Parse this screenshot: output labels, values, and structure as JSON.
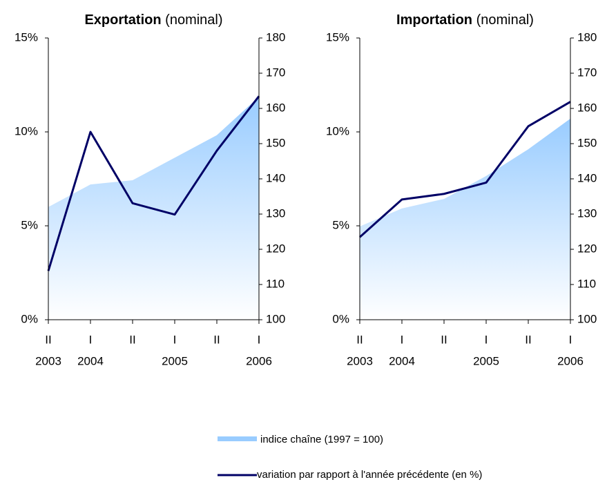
{
  "chart_data": [
    {
      "type": "area_line",
      "title": "Exportation",
      "title_note": "(nominal)",
      "categories": [
        "II",
        "I",
        "II",
        "I",
        "II",
        "I"
      ],
      "category_years": [
        "2003",
        "2004",
        null,
        "2005",
        null,
        "2006"
      ],
      "series": [
        {
          "name": "indice chaîne  (1997 = 100)",
          "color": "#99ccff",
          "axis": "y2",
          "values": [
            132,
            138.4,
            139.6,
            146,
            152.4,
            163.3
          ]
        },
        {
          "name": "variation par rapport à l'année précédente (en %)",
          "color": "#000066",
          "values": [
            2.6,
            10.0,
            6.2,
            5.6,
            9.0,
            11.9
          ]
        }
      ],
      "ylim": [
        0,
        15
      ],
      "yticks": [
        {
          "value": 0,
          "label": "0%"
        },
        {
          "value": 5,
          "label": "5%"
        },
        {
          "value": 10,
          "label": "10%"
        },
        {
          "value": 15,
          "label": "15%"
        }
      ],
      "y2lim": [
        100,
        180
      ],
      "y2ticks": [
        100,
        110,
        120,
        130,
        140,
        150,
        160,
        170,
        180
      ]
    },
    {
      "type": "area_line",
      "title": "Importation",
      "title_note": "(nominal)",
      "categories": [
        "II",
        "I",
        "II",
        "I",
        "II",
        "I"
      ],
      "category_years": [
        "2003",
        "2004",
        null,
        "2005",
        null,
        "2006"
      ],
      "series": [
        {
          "name": "indice chaîne  (1997 = 100)",
          "color": "#99ccff",
          "axis": "y2",
          "values": [
            126.5,
            131.6,
            134.3,
            140.8,
            148.4,
            157.1
          ]
        },
        {
          "name": "variation par rapport à l'année précédente (en %)",
          "color": "#000066",
          "values": [
            4.4,
            6.4,
            6.7,
            7.3,
            10.3,
            11.6
          ]
        }
      ],
      "ylim": [
        0,
        15
      ],
      "yticks": [
        {
          "value": 0,
          "label": "0%"
        },
        {
          "value": 5,
          "label": "5%"
        },
        {
          "value": 10,
          "label": "10%"
        },
        {
          "value": 15,
          "label": "15%"
        }
      ],
      "y2lim": [
        100,
        180
      ],
      "y2ticks": [
        100,
        110,
        120,
        130,
        140,
        150,
        160,
        170,
        180
      ]
    }
  ]
}
